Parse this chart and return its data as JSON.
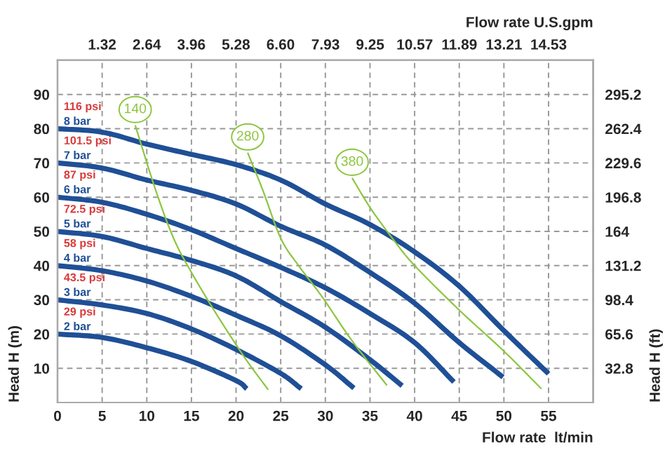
{
  "chart_data": {
    "type": "line",
    "xlabel": "Flow rate  lt/min",
    "ylabel": "Head H (m)",
    "x2label": "Flow rate U.S.gpm",
    "y2label": "Head H (ft)",
    "xlim": [
      0,
      60
    ],
    "xticks": [
      0,
      5,
      10,
      15,
      20,
      25,
      30,
      35,
      40,
      45,
      50,
      55
    ],
    "ylim": [
      0,
      100
    ],
    "yticks": [
      10,
      20,
      30,
      40,
      50,
      60,
      70,
      80,
      90
    ],
    "x2lim": [
      0,
      15.85
    ],
    "x2ticks": [
      1.32,
      2.64,
      3.96,
      5.28,
      {
        "value": 6.6,
        "label": "6.60"
      },
      7.93,
      9.25,
      10.57,
      11.89,
      13.21,
      14.53
    ],
    "y2lim": [
      0,
      328
    ],
    "y2ticks": [
      32.8,
      65.6,
      98.4,
      131.2,
      164,
      196.8,
      229.6,
      262.4,
      295.2
    ],
    "grid": true,
    "series": [
      {
        "name": "8 bar",
        "color": "#1f4f96",
        "x": [
          0,
          5,
          10,
          15,
          20,
          25,
          30,
          35,
          40,
          45,
          50,
          55
        ],
        "values": [
          80,
          79,
          75.5,
          72.5,
          69.5,
          65,
          58,
          52,
          44,
          34,
          21,
          8.4
        ]
      },
      {
        "name": "7 bar",
        "color": "#1f4f96",
        "x": [
          0,
          5,
          10,
          15,
          20,
          25,
          30,
          35,
          40,
          45,
          49.9
        ],
        "values": [
          70,
          68.5,
          65,
          62,
          58,
          51.5,
          46,
          38,
          29,
          17.5,
          7.4
        ]
      },
      {
        "name": "6 bar",
        "color": "#1f4f96",
        "x": [
          0,
          5,
          10,
          15,
          20,
          25,
          30,
          35,
          40,
          44.4
        ],
        "values": [
          60,
          58.5,
          55,
          50.5,
          45,
          39.5,
          33.5,
          26,
          17.5,
          6
        ]
      },
      {
        "name": "5 bar",
        "color": "#1f4f96",
        "x": [
          0,
          5,
          10,
          15,
          20,
          25,
          30,
          35,
          38.6
        ],
        "values": [
          50,
          48.5,
          45,
          41.5,
          37,
          29.5,
          22,
          12.5,
          4.9
        ]
      },
      {
        "name": "4 bar",
        "color": "#1f4f96",
        "x": [
          0,
          5,
          10,
          15,
          20,
          25,
          30,
          33.2
        ],
        "values": [
          40,
          38.5,
          35.5,
          31,
          25.5,
          19.5,
          11,
          4.2
        ]
      },
      {
        "name": "3 bar",
        "color": "#1f4f96",
        "x": [
          0,
          5,
          10,
          15,
          20,
          25,
          27.3
        ],
        "values": [
          30,
          28.5,
          26,
          21.5,
          15.5,
          8.5,
          4
        ]
      },
      {
        "name": "2 bar",
        "color": "#1f4f96",
        "x": [
          0,
          5,
          10,
          15,
          20,
          21.2
        ],
        "values": [
          20,
          19,
          16,
          12,
          6.4,
          4
        ]
      },
      {
        "name": "140",
        "color": "#8cc63f",
        "x": [
          8.7,
          11,
          13,
          15,
          18,
          21,
          23.6
        ],
        "values": [
          81,
          62,
          48,
          38,
          25,
          13,
          3.7
        ]
      },
      {
        "name": "280",
        "color": "#8cc63f",
        "x": [
          21.3,
          23,
          25,
          27,
          29.6,
          33,
          36.9
        ],
        "values": [
          73,
          62,
          48,
          40,
          31,
          18,
          5
        ]
      },
      {
        "name": "380",
        "color": "#8cc63f",
        "x": [
          33,
          35,
          37.5,
          40,
          45,
          50,
          54.2
        ],
        "values": [
          65.6,
          57,
          48,
          40,
          27,
          15,
          4
        ]
      }
    ],
    "annotations": [
      "116 psi",
      "101.5 psi",
      "87 psi",
      "72.5 psi",
      "58 psi",
      "43.5 psi",
      "29 psi"
    ]
  }
}
